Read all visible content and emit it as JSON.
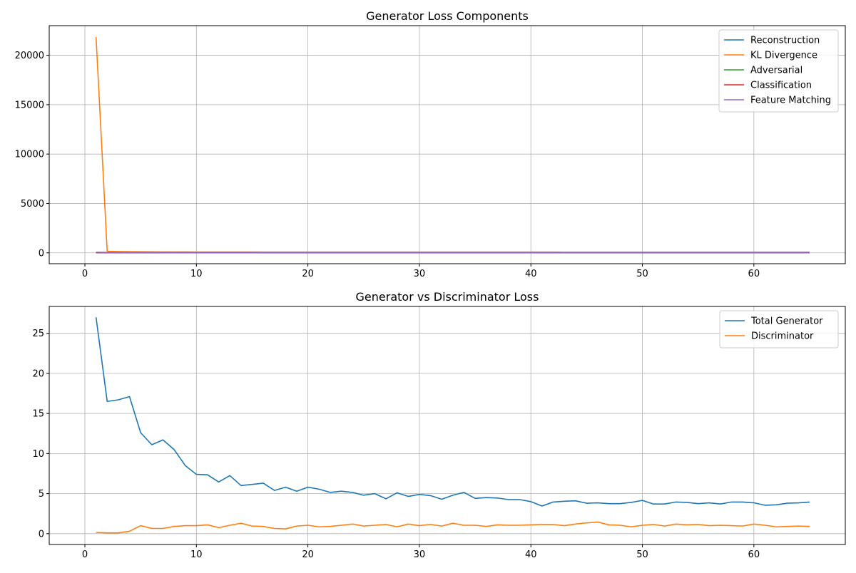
{
  "chart_data": [
    {
      "type": "line",
      "title": "Generator Loss Components",
      "xlabel": "",
      "ylabel": "",
      "xlim": [
        -3.2,
        68.2
      ],
      "ylim": [
        -1100,
        23000
      ],
      "xticks": [
        0,
        10,
        20,
        30,
        40,
        50,
        60
      ],
      "yticks": [
        0,
        5000,
        10000,
        15000,
        20000
      ],
      "grid": true,
      "legend_position": "top-right",
      "x": [
        1,
        2,
        3,
        4,
        5,
        6,
        7,
        8,
        9,
        10,
        11,
        12,
        13,
        14,
        15,
        16,
        17,
        18,
        19,
        20,
        21,
        22,
        23,
        24,
        25,
        26,
        27,
        28,
        29,
        30,
        31,
        32,
        33,
        34,
        35,
        36,
        37,
        38,
        39,
        40,
        41,
        42,
        43,
        44,
        45,
        46,
        47,
        48,
        49,
        50,
        51,
        52,
        53,
        54,
        55,
        56,
        57,
        58,
        59,
        60,
        61,
        62,
        63,
        64,
        65
      ],
      "series": [
        {
          "name": "Reconstruction",
          "color": "#1f77b4",
          "values": [
            18,
            13,
            12,
            12,
            11,
            10,
            10,
            10,
            9,
            9,
            9,
            9,
            9,
            9,
            9,
            9,
            9,
            9,
            9,
            9,
            9,
            9,
            9,
            9,
            9,
            9,
            9,
            9,
            9,
            9,
            9,
            9,
            9,
            9,
            9,
            9,
            9,
            9,
            9,
            9,
            9,
            9,
            9,
            9,
            9,
            9,
            9,
            9,
            9,
            9,
            9,
            9,
            9,
            9,
            9,
            9,
            9,
            9,
            9,
            9,
            9,
            9,
            9,
            9,
            9
          ]
        },
        {
          "name": "KL Divergence",
          "color": "#ff7f0e",
          "values": [
            21850,
            160,
            130,
            120,
            110,
            105,
            100,
            95,
            92,
            90,
            88,
            86,
            85,
            84,
            83,
            82,
            81,
            80,
            80,
            79,
            79,
            78,
            78,
            78,
            77,
            77,
            77,
            76,
            76,
            76,
            76,
            75,
            75,
            75,
            75,
            75,
            74,
            74,
            74,
            74,
            74,
            74,
            73,
            73,
            73,
            73,
            73,
            73,
            73,
            72,
            72,
            72,
            72,
            72,
            72,
            72,
            72,
            72,
            72,
            71,
            71,
            71,
            71,
            71,
            71
          ]
        },
        {
          "name": "Adversarial",
          "color": "#2ca02c",
          "values": [
            3,
            2,
            2,
            2,
            2,
            2,
            2,
            2,
            2,
            2,
            2,
            2,
            2,
            2,
            2,
            2,
            2,
            2,
            2,
            2,
            2,
            2,
            2,
            2,
            2,
            2,
            2,
            2,
            2,
            2,
            2,
            2,
            2,
            2,
            2,
            2,
            2,
            2,
            2,
            2,
            2,
            2,
            2,
            2,
            2,
            2,
            2,
            2,
            2,
            2,
            2,
            2,
            2,
            2,
            2,
            2,
            2,
            2,
            2,
            2,
            2,
            2,
            2,
            2,
            2
          ]
        },
        {
          "name": "Classification",
          "color": "#d62728",
          "values": [
            2,
            2,
            1,
            1,
            1,
            1,
            1,
            1,
            1,
            1,
            1,
            1,
            1,
            1,
            1,
            1,
            1,
            1,
            1,
            1,
            1,
            1,
            1,
            1,
            1,
            1,
            1,
            1,
            1,
            1,
            1,
            1,
            1,
            1,
            1,
            1,
            1,
            1,
            1,
            1,
            1,
            1,
            1,
            1,
            1,
            1,
            1,
            1,
            1,
            1,
            1,
            1,
            1,
            1,
            1,
            1,
            1,
            1,
            1,
            1,
            1,
            1,
            1,
            1,
            1
          ]
        },
        {
          "name": "Feature Matching",
          "color": "#9467bd",
          "values": [
            60,
            40,
            35,
            32,
            30,
            28,
            27,
            26,
            25,
            25,
            24,
            24,
            23,
            23,
            23,
            22,
            22,
            22,
            22,
            21,
            21,
            21,
            21,
            21,
            21,
            20,
            20,
            20,
            20,
            20,
            20,
            20,
            20,
            20,
            20,
            20,
            20,
            20,
            20,
            20,
            20,
            20,
            20,
            20,
            20,
            20,
            20,
            20,
            20,
            20,
            20,
            20,
            20,
            20,
            20,
            20,
            20,
            20,
            20,
            20,
            20,
            20,
            20,
            20,
            20
          ]
        }
      ]
    },
    {
      "type": "line",
      "title": "Generator vs Discriminator Loss",
      "xlabel": "",
      "ylabel": "",
      "xlim": [
        -3.2,
        68.2
      ],
      "ylim": [
        -1.35,
        28.35
      ],
      "xticks": [
        0,
        10,
        20,
        30,
        40,
        50,
        60
      ],
      "yticks": [
        0,
        5,
        10,
        15,
        20,
        25
      ],
      "grid": true,
      "legend_position": "top-right",
      "x": [
        1,
        2,
        3,
        4,
        5,
        6,
        7,
        8,
        9,
        10,
        11,
        12,
        13,
        14,
        15,
        16,
        17,
        18,
        19,
        20,
        21,
        22,
        23,
        24,
        25,
        26,
        27,
        28,
        29,
        30,
        31,
        32,
        33,
        34,
        35,
        36,
        37,
        38,
        39,
        40,
        41,
        42,
        43,
        44,
        45,
        46,
        47,
        48,
        49,
        50,
        51,
        52,
        53,
        54,
        55,
        56,
        57,
        58,
        59,
        60,
        61,
        62,
        63,
        64,
        65
      ],
      "series": [
        {
          "name": "Total Generator",
          "color": "#1f77b4",
          "values": [
            27.0,
            16.5,
            16.7,
            17.1,
            12.6,
            11.1,
            11.7,
            10.5,
            8.5,
            7.4,
            7.35,
            6.45,
            7.25,
            6.0,
            6.15,
            6.3,
            5.4,
            5.8,
            5.3,
            5.8,
            5.55,
            5.15,
            5.3,
            5.15,
            4.8,
            5.0,
            4.35,
            5.1,
            4.65,
            4.9,
            4.75,
            4.3,
            4.8,
            5.15,
            4.4,
            4.5,
            4.45,
            4.25,
            4.25,
            4.0,
            3.45,
            3.95,
            4.05,
            4.1,
            3.8,
            3.85,
            3.75,
            3.75,
            3.9,
            4.15,
            3.7,
            3.7,
            3.95,
            3.9,
            3.75,
            3.85,
            3.7,
            3.95,
            3.95,
            3.85,
            3.55,
            3.6,
            3.8,
            3.85,
            3.95
          ]
        },
        {
          "name": "Discriminator",
          "color": "#ff7f0e",
          "values": [
            0.15,
            0.1,
            0.1,
            0.3,
            1.0,
            0.65,
            0.65,
            0.9,
            1.0,
            1.0,
            1.1,
            0.75,
            1.05,
            1.3,
            0.95,
            0.9,
            0.65,
            0.6,
            0.95,
            1.05,
            0.85,
            0.9,
            1.05,
            1.2,
            0.95,
            1.05,
            1.15,
            0.85,
            1.2,
            1.0,
            1.15,
            0.95,
            1.3,
            1.05,
            1.05,
            0.9,
            1.1,
            1.05,
            1.05,
            1.1,
            1.15,
            1.15,
            1.0,
            1.2,
            1.35,
            1.45,
            1.1,
            1.05,
            0.85,
            1.05,
            1.15,
            0.95,
            1.2,
            1.1,
            1.15,
            1.0,
            1.05,
            1.0,
            0.95,
            1.2,
            1.05,
            0.85,
            0.9,
            0.95,
            0.9
          ]
        }
      ]
    }
  ]
}
